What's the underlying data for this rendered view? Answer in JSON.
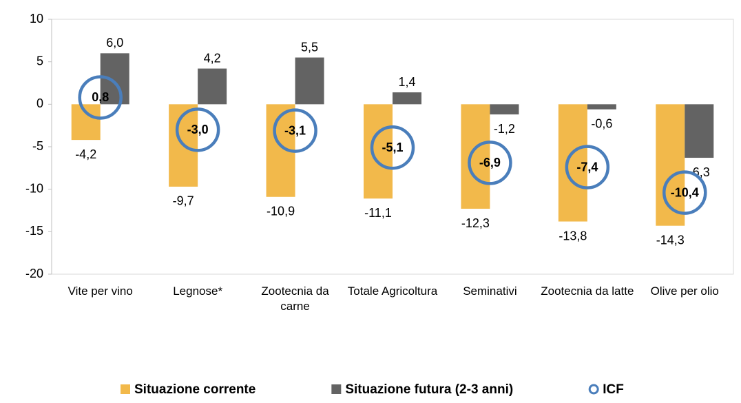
{
  "chart_data": {
    "type": "bar",
    "categories": [
      "Vite per vino",
      "Legnose*",
      "Zootecnia da carne",
      "Totale Agricoltura",
      "Seminativi",
      "Zootecnia da latte",
      "Olive per olio"
    ],
    "series": [
      {
        "name": "Situazione corrente",
        "type": "bar",
        "color": "#f2b94b",
        "values": [
          -4.2,
          -9.7,
          -10.9,
          -11.1,
          -12.3,
          -13.8,
          -14.3
        ],
        "value_labels": [
          "-4,2",
          "-9,7",
          "-10,9",
          "-11,1",
          "-12,3",
          "-13,8",
          "-14,3"
        ]
      },
      {
        "name": "Situazione futura (2-3 anni)",
        "type": "bar",
        "color": "#636363",
        "values": [
          6.0,
          4.2,
          5.5,
          1.4,
          -1.2,
          -0.6,
          -6.3
        ],
        "value_labels": [
          "6,0",
          "4,2",
          "5,5",
          "1,4",
          "-1,2",
          "-0,6",
          "-6,3"
        ]
      },
      {
        "name": "ICF",
        "type": "scatter",
        "color": "#4a7ebb",
        "values": [
          0.8,
          -3.0,
          -3.1,
          -5.1,
          -6.9,
          -7.4,
          -10.4
        ],
        "value_labels": [
          "0,8",
          "-3,0",
          "-3,1",
          "-5,1",
          "-6,9",
          "-7,4",
          "-10,4"
        ]
      }
    ],
    "ylim": [
      -20,
      10
    ],
    "yticks": [
      10,
      5,
      0,
      -5,
      -10,
      -15,
      -20
    ],
    "legend": "bottom"
  }
}
